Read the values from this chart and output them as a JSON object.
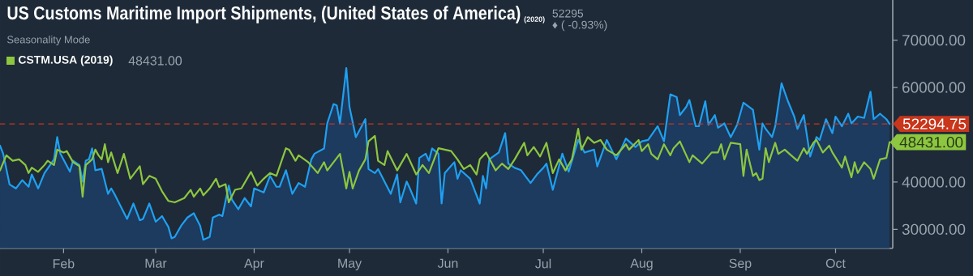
{
  "chart_data": {
    "type": "line",
    "title": "US Customs Maritime Import Shipments, (United States of America)",
    "subtitle": "Seasonality Mode",
    "annotations": [
      "(2020)",
      "52295",
      "♦ ( -0.93%)",
      "48431.00",
      {
        "text": "48431.00",
        "x": "2020-10-18",
        "y": 48431
      }
    ],
    "xlim": [
      "2020-01-12",
      "2020-10-19"
    ],
    "xticks": [
      {
        "value": "2020-02-01",
        "label": "Feb"
      },
      {
        "value": "2020-03-01",
        "label": "Mar"
      },
      {
        "value": "2020-04-01",
        "label": "Apr"
      },
      {
        "value": "2020-05-01",
        "label": "May"
      },
      {
        "value": "2020-06-01",
        "label": "Jun"
      },
      {
        "value": "2020-07-01",
        "label": "Jul"
      },
      {
        "value": "2020-08-01",
        "label": "Aug"
      },
      {
        "value": "2020-09-01",
        "label": "Sep"
      },
      {
        "value": "2020-10-01",
        "label": "Oct"
      }
    ],
    "ylim": [
      26000,
      78500
    ],
    "yticks": [
      {
        "value": 30000,
        "label": "30000.00"
      },
      {
        "value": 40000,
        "label": "40000.00"
      },
      {
        "value": 60000,
        "label": "60000.00"
      },
      {
        "value": 70000,
        "label": "70000.00"
      }
    ],
    "ref_lines": [
      {
        "axis": "y",
        "value": 52294.75,
        "label": "52294.75",
        "color": "#c8361b",
        "line_style": "dashed"
      }
    ],
    "legend": "top left",
    "series": [
      {
        "type": "area",
        "color": "#1fa0f0",
        "x": [
          "2020-01-12",
          "2020-01-13",
          "2020-01-15",
          "2020-01-17",
          "2020-01-19",
          "2020-01-21",
          "2020-01-22",
          "2020-01-24",
          "2020-01-26",
          "2020-01-29",
          "2020-01-30",
          "2020-01-31",
          "2020-02-03",
          "2020-02-04",
          "2020-02-06",
          "2020-02-07",
          "2020-02-08",
          "2020-02-09",
          "2020-02-10",
          "2020-02-11",
          "2020-02-13",
          "2020-02-15",
          "2020-02-16",
          "2020-02-17",
          "2020-02-19",
          "2020-02-21",
          "2020-02-23",
          "2020-02-25",
          "2020-02-26",
          "2020-02-28",
          "2020-03-01",
          "2020-03-03",
          "2020-03-05",
          "2020-03-06",
          "2020-03-07",
          "2020-03-09",
          "2020-03-11",
          "2020-03-13",
          "2020-03-15",
          "2020-03-16",
          "2020-03-18",
          "2020-03-19",
          "2020-03-21",
          "2020-03-22",
          "2020-03-24",
          "2020-03-25",
          "2020-03-27",
          "2020-03-29",
          "2020-03-31",
          "2020-04-01",
          "2020-04-04",
          "2020-04-06",
          "2020-04-08",
          "2020-04-09",
          "2020-04-11",
          "2020-04-13",
          "2020-04-15",
          "2020-04-17",
          "2020-04-19",
          "2020-04-20",
          "2020-04-23",
          "2020-04-24",
          "2020-04-26",
          "2020-04-27",
          "2020-04-28",
          "2020-04-30",
          "2020-05-01",
          "2020-05-03",
          "2020-05-06",
          "2020-05-07",
          "2020-05-09",
          "2020-05-10",
          "2020-05-14",
          "2020-05-16",
          "2020-05-17",
          "2020-05-19",
          "2020-05-20",
          "2020-05-22",
          "2020-05-23",
          "2020-05-25",
          "2020-05-26",
          "2020-05-27",
          "2020-05-29",
          "2020-05-30",
          "2020-05-31",
          "2020-06-03",
          "2020-06-04",
          "2020-06-05",
          "2020-06-08",
          "2020-06-11",
          "2020-06-12",
          "2020-06-13",
          "2020-06-14",
          "2020-06-17",
          "2020-06-19",
          "2020-06-20",
          "2020-06-22",
          "2020-06-24",
          "2020-06-27",
          "2020-06-29",
          "2020-07-01",
          "2020-07-02",
          "2020-07-04",
          "2020-07-07",
          "2020-07-09",
          "2020-07-12",
          "2020-07-14",
          "2020-07-17",
          "2020-07-18",
          "2020-07-21",
          "2020-07-24",
          "2020-07-27",
          "2020-07-30",
          "2020-08-01",
          "2020-08-03",
          "2020-08-06",
          "2020-08-08",
          "2020-08-10",
          "2020-08-12",
          "2020-08-13",
          "2020-08-15",
          "2020-08-16",
          "2020-08-18",
          "2020-08-19",
          "2020-08-21",
          "2020-08-22",
          "2020-08-24",
          "2020-08-25",
          "2020-08-27",
          "2020-08-29",
          "2020-08-31",
          "2020-09-02",
          "2020-09-05",
          "2020-09-07",
          "2020-09-08",
          "2020-09-09",
          "2020-09-11",
          "2020-09-12",
          "2020-09-14",
          "2020-09-16",
          "2020-09-18",
          "2020-09-19",
          "2020-09-21",
          "2020-09-23",
          "2020-09-25",
          "2020-09-26",
          "2020-09-28",
          "2020-09-30",
          "2020-10-01",
          "2020-10-03",
          "2020-10-05",
          "2020-10-06",
          "2020-10-08",
          "2020-10-10",
          "2020-10-12",
          "2020-10-13",
          "2020-10-15",
          "2020-10-17",
          "2020-10-18"
        ],
        "values": [
          47700,
          46000,
          39500,
          38650,
          40400,
          39000,
          41600,
          38650,
          41900,
          44800,
          49500,
          46000,
          42200,
          44500,
          43600,
          40100,
          44500,
          44800,
          47100,
          42500,
          42800,
          37500,
          38650,
          37500,
          34850,
          32200,
          35450,
          31900,
          32200,
          35450,
          31600,
          32800,
          30500,
          28100,
          28400,
          30750,
          32500,
          33400,
          30750,
          27800,
          28400,
          32500,
          33100,
          32800,
          39250,
          36300,
          34250,
          36600,
          34850,
          38650,
          37800,
          41300,
          39000,
          39000,
          42500,
          37500,
          39800,
          39000,
          44800,
          46000,
          47100,
          52400,
          56500,
          56200,
          52400,
          64100,
          55900,
          49500,
          53300,
          42750,
          41900,
          42750,
          37500,
          41600,
          35700,
          40100,
          38650,
          35450,
          45100,
          46000,
          44500,
          47100,
          46000,
          35450,
          41900,
          44200,
          40700,
          42500,
          40700,
          35450,
          41300,
          38650,
          44800,
          46250,
          50350,
          43900,
          43000,
          42500,
          39800,
          41600,
          43000,
          43900,
          38350,
          46000,
          42200,
          48900,
          46250,
          46850,
          43300,
          48900,
          44800,
          49200,
          47400,
          48600,
          48900,
          51800,
          48600,
          58550,
          57950,
          54150,
          55900,
          57350,
          51800,
          51800,
          57100,
          52100,
          54150,
          51500,
          52400,
          49500,
          52100,
          56800,
          55300,
          46850,
          52400,
          51250,
          49500,
          51800,
          60900,
          57100,
          53850,
          51250,
          54150,
          45400,
          49500,
          48900,
          53300,
          50350,
          53850,
          51800,
          54450,
          52400,
          53850,
          53550,
          59100,
          53300,
          54450,
          53300,
          52294.75
        ]
      },
      {
        "type": "line",
        "name": "CSTM.USA (2019)",
        "color": "#8dc63f",
        "x": [
          "2020-01-12",
          "2020-01-14",
          "2020-01-16",
          "2020-01-18",
          "2020-01-20",
          "2020-01-21",
          "2020-01-22",
          "2020-01-24",
          "2020-01-26",
          "2020-01-27",
          "2020-01-29",
          "2020-01-30",
          "2020-02-01",
          "2020-02-02",
          "2020-02-04",
          "2020-02-06",
          "2020-02-07",
          "2020-02-08",
          "2020-02-10",
          "2020-02-11",
          "2020-02-12",
          "2020-02-13",
          "2020-02-14",
          "2020-02-15",
          "2020-02-16",
          "2020-02-18",
          "2020-02-20",
          "2020-02-22",
          "2020-02-25",
          "2020-02-26",
          "2020-02-28",
          "2020-03-01",
          "2020-03-03",
          "2020-03-05",
          "2020-03-07",
          "2020-03-10",
          "2020-03-12",
          "2020-03-13",
          "2020-03-15",
          "2020-03-16",
          "2020-03-18",
          "2020-03-20",
          "2020-03-21",
          "2020-03-23",
          "2020-03-24",
          "2020-03-26",
          "2020-03-28",
          "2020-03-31",
          "2020-04-02",
          "2020-04-04",
          "2020-04-06",
          "2020-04-08",
          "2020-04-11",
          "2020-04-12",
          "2020-04-14",
          "2020-04-15",
          "2020-04-18",
          "2020-04-21",
          "2020-04-23",
          "2020-04-24",
          "2020-04-28",
          "2020-04-30",
          "2020-05-01",
          "2020-05-02",
          "2020-05-04",
          "2020-05-06",
          "2020-05-07",
          "2020-05-09",
          "2020-05-10",
          "2020-05-12",
          "2020-05-13",
          "2020-05-16",
          "2020-05-19",
          "2020-05-22",
          "2020-05-24",
          "2020-05-26",
          "2020-05-29",
          "2020-06-02",
          "2020-06-04",
          "2020-06-06",
          "2020-06-08",
          "2020-06-10",
          "2020-06-11",
          "2020-06-13",
          "2020-06-16",
          "2020-06-18",
          "2020-06-20",
          "2020-06-22",
          "2020-06-25",
          "2020-06-26",
          "2020-06-28",
          "2020-06-30",
          "2020-07-02",
          "2020-07-04",
          "2020-07-06",
          "2020-07-08",
          "2020-07-10",
          "2020-07-12",
          "2020-07-13",
          "2020-07-15",
          "2020-07-17",
          "2020-07-19",
          "2020-07-21",
          "2020-07-24",
          "2020-07-27",
          "2020-07-28",
          "2020-07-31",
          "2020-08-01",
          "2020-08-03",
          "2020-08-04",
          "2020-08-06",
          "2020-08-08",
          "2020-08-10",
          "2020-08-11",
          "2020-08-13",
          "2020-08-16",
          "2020-08-17",
          "2020-08-20",
          "2020-08-23",
          "2020-08-25",
          "2020-08-26",
          "2020-08-27",
          "2020-08-29",
          "2020-09-01",
          "2020-09-02",
          "2020-09-03",
          "2020-09-05",
          "2020-09-06",
          "2020-09-07",
          "2020-09-08",
          "2020-09-09",
          "2020-09-10",
          "2020-09-12",
          "2020-09-13",
          "2020-09-15",
          "2020-09-17",
          "2020-09-19",
          "2020-09-21",
          "2020-09-22",
          "2020-09-24",
          "2020-09-25",
          "2020-09-27",
          "2020-09-29",
          "2020-09-30",
          "2020-10-03",
          "2020-10-04",
          "2020-10-06",
          "2020-10-07",
          "2020-10-08",
          "2020-10-10",
          "2020-10-12",
          "2020-10-13",
          "2020-10-15",
          "2020-10-17",
          "2020-10-18"
        ],
        "values": [
          42450,
          45650,
          44500,
          44800,
          43600,
          41900,
          43050,
          42150,
          43600,
          44500,
          43600,
          46850,
          46250,
          46550,
          44200,
          43350,
          36900,
          43600,
          44800,
          46850,
          45650,
          44800,
          48000,
          44200,
          46250,
          41900,
          45950,
          40700,
          43350,
          39550,
          41300,
          40700,
          38050,
          36000,
          35700,
          36600,
          38350,
          36900,
          38650,
          37200,
          38650,
          40700,
          38950,
          39550,
          35700,
          38350,
          38650,
          42150,
          39250,
          40700,
          41900,
          41300,
          47150,
          46850,
          44500,
          45650,
          44200,
          41900,
          44200,
          42450,
          45950,
          38650,
          42150,
          38650,
          42450,
          44800,
          48600,
          49750,
          44500,
          43600,
          46550,
          42450,
          45950,
          41600,
          43600,
          41900,
          47150,
          46550,
          44800,
          42750,
          43600,
          41600,
          44800,
          46250,
          42450,
          43900,
          42750,
          44800,
          48300,
          45650,
          47400,
          45400,
          48300,
          41900,
          44800,
          42450,
          44800,
          51250,
          46850,
          49500,
          48300,
          48900,
          46850,
          45650,
          48000,
          46850,
          48900,
          46550,
          48000,
          45950,
          44800,
          48000,
          45650,
          47150,
          48600,
          44200,
          45650,
          43900,
          46250,
          46250,
          48000,
          44800,
          48300,
          48000,
          41300,
          46850,
          41300,
          41900,
          40400,
          40700,
          47150,
          44200,
          48300,
          45950,
          46850,
          45650,
          44500,
          47150,
          45950,
          48300,
          48900,
          46250,
          47700,
          46250,
          43050,
          45400,
          41000,
          44200,
          41900,
          44200,
          42750,
          40700,
          44800,
          45100,
          48431
        ]
      }
    ]
  }
}
